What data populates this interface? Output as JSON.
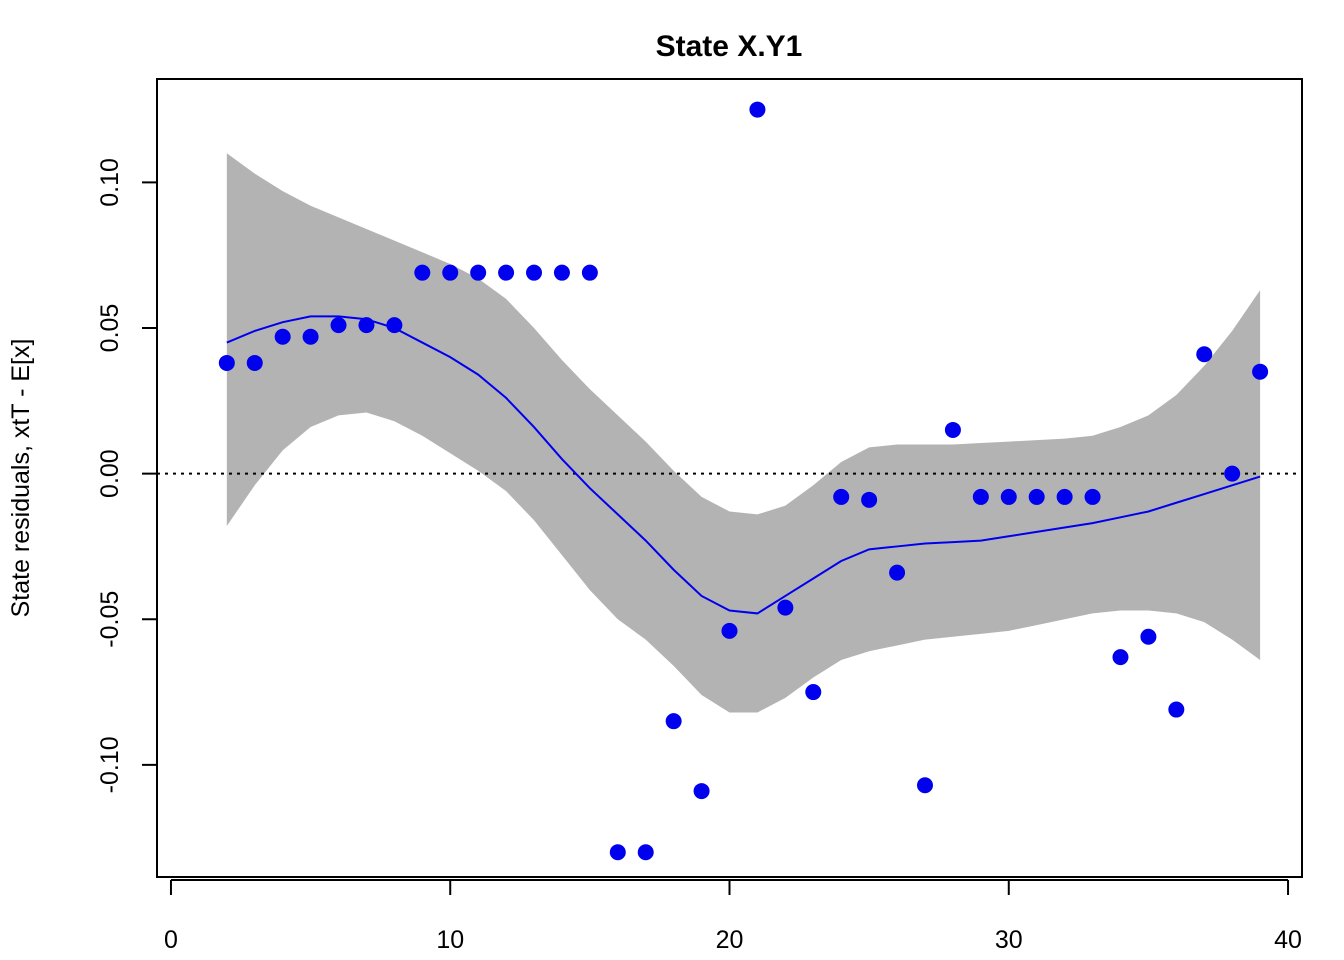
{
  "chart_data": {
    "type": "scatter",
    "title": "State X.Y1",
    "xlabel": "",
    "ylabel": "State residuals, xtT - E[x]",
    "xlim": [
      -0.5,
      40.5
    ],
    "ylim": [
      -0.1385,
      0.1355
    ],
    "x_ticks": [
      0,
      10,
      20,
      30,
      40
    ],
    "x_tick_labels": [
      "0",
      "10",
      "20",
      "30",
      "40"
    ],
    "y_ticks": [
      -0.1,
      -0.05,
      0.0,
      0.05,
      0.1
    ],
    "y_tick_labels": [
      "-0.10",
      "-0.05",
      "0.00",
      "0.05",
      "0.10"
    ],
    "grid": false,
    "reference_line": {
      "y": 0.0,
      "style": "dotted",
      "color": "#000000"
    },
    "colors": {
      "points": "#0000ee",
      "smooth_line": "#0000ee",
      "band": "#b3b3b3"
    },
    "points": {
      "x": [
        2,
        3,
        4,
        5,
        6,
        7,
        8,
        9,
        10,
        11,
        12,
        13,
        14,
        15,
        16,
        17,
        18,
        19,
        20,
        21,
        22,
        23,
        24,
        25,
        26,
        27,
        28,
        29,
        30,
        31,
        32,
        33,
        34,
        35,
        36,
        37,
        38,
        39
      ],
      "y": [
        0.038,
        0.038,
        0.047,
        0.047,
        0.051,
        0.051,
        0.051,
        0.069,
        0.069,
        0.069,
        0.069,
        0.069,
        0.069,
        0.069,
        -0.13,
        -0.13,
        -0.085,
        -0.109,
        -0.054,
        0.125,
        -0.046,
        -0.075,
        -0.008,
        -0.009,
        -0.034,
        -0.107,
        0.015,
        -0.008,
        -0.008,
        -0.008,
        -0.008,
        -0.008,
        -0.063,
        -0.056,
        -0.081,
        0.041,
        0.0,
        0.035
      ]
    },
    "smooth": {
      "x": [
        2,
        3,
        4,
        5,
        6,
        7,
        8,
        9,
        10,
        11,
        12,
        13,
        14,
        15,
        16,
        17,
        18,
        19,
        20,
        21,
        22,
        23,
        24,
        25,
        26,
        27,
        28,
        29,
        30,
        31,
        32,
        33,
        34,
        35,
        36,
        37,
        38,
        39
      ],
      "y": [
        0.045,
        0.049,
        0.052,
        0.054,
        0.054,
        0.053,
        0.05,
        0.045,
        0.04,
        0.034,
        0.026,
        0.016,
        0.005,
        -0.005,
        -0.014,
        -0.023,
        -0.033,
        -0.042,
        -0.047,
        -0.048,
        -0.042,
        -0.036,
        -0.03,
        -0.026,
        -0.025,
        -0.024,
        -0.0235,
        -0.023,
        -0.0215,
        -0.02,
        -0.0185,
        -0.017,
        -0.015,
        -0.013,
        -0.01,
        -0.007,
        -0.004,
        -0.001
      ]
    },
    "band": {
      "x": [
        2,
        3,
        4,
        5,
        6,
        7,
        8,
        9,
        10,
        11,
        12,
        13,
        14,
        15,
        16,
        17,
        18,
        19,
        20,
        21,
        22,
        23,
        24,
        25,
        26,
        27,
        28,
        29,
        30,
        31,
        32,
        33,
        34,
        35,
        36,
        37,
        38,
        39
      ],
      "upper": [
        0.11,
        0.103,
        0.097,
        0.092,
        0.088,
        0.084,
        0.08,
        0.076,
        0.072,
        0.067,
        0.06,
        0.05,
        0.039,
        0.029,
        0.02,
        0.011,
        0.001,
        -0.008,
        -0.013,
        -0.014,
        -0.011,
        -0.004,
        0.004,
        0.009,
        0.01,
        0.01,
        0.01,
        0.0105,
        0.011,
        0.0115,
        0.012,
        0.013,
        0.016,
        0.02,
        0.027,
        0.037,
        0.049,
        0.063
      ],
      "lower": [
        -0.018,
        -0.004,
        0.008,
        0.016,
        0.02,
        0.021,
        0.018,
        0.013,
        0.007,
        0.001,
        -0.006,
        -0.016,
        -0.028,
        -0.04,
        -0.05,
        -0.057,
        -0.066,
        -0.076,
        -0.082,
        -0.082,
        -0.077,
        -0.07,
        -0.064,
        -0.061,
        -0.059,
        -0.057,
        -0.056,
        -0.055,
        -0.054,
        -0.052,
        -0.05,
        -0.048,
        -0.047,
        -0.047,
        -0.048,
        -0.051,
        -0.057,
        -0.064
      ]
    }
  }
}
